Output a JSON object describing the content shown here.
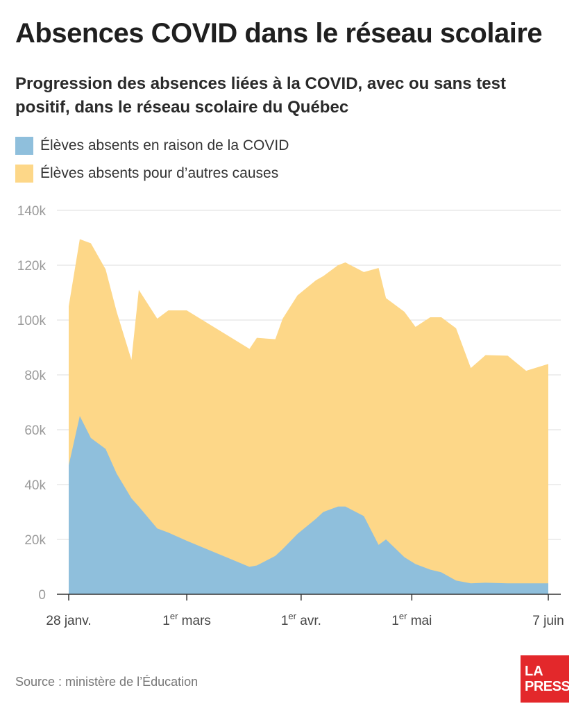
{
  "header": {
    "title": "Absences COVID dans le réseau scolaire",
    "subtitle": "Progression des absences liées à la COVID, avec ou sans test positif, dans le réseau scolaire du Québec"
  },
  "legend": {
    "items": [
      {
        "label": "Élèves absents en raison de la COVID",
        "color": "#8fbfdc"
      },
      {
        "label": "Élèves absents pour d’autres causes",
        "color": "#fdd788"
      }
    ]
  },
  "footer": {
    "source": "Source : ministère de l’Éducation",
    "logo_line1": "LA",
    "logo_line2": "PRESSE"
  },
  "chart_data": {
    "type": "area",
    "stacked": true,
    "x_unit": "date (2022)",
    "x": [
      "01-28",
      "01-31",
      "02-03",
      "02-07",
      "02-10",
      "02-14",
      "02-16",
      "02-21",
      "02-24",
      "03-01",
      "03-18",
      "03-20",
      "03-25",
      "03-27",
      "03-31",
      "04-05",
      "04-07",
      "04-11",
      "04-13",
      "04-18",
      "04-22",
      "04-24",
      "04-29",
      "05-02",
      "05-06",
      "05-09",
      "05-13",
      "05-17",
      "05-21",
      "05-27",
      "06-01",
      "06-07"
    ],
    "series": [
      {
        "name": "Élèves absents en raison de la COVID",
        "color": "#8fbfdc",
        "values": [
          47000,
          65000,
          57000,
          53000,
          44000,
          35000,
          32000,
          24000,
          22500,
          19500,
          10000,
          10500,
          14000,
          16500,
          22000,
          27500,
          30000,
          32000,
          32000,
          28500,
          18000,
          20000,
          13500,
          11000,
          9000,
          8000,
          5000,
          4000,
          4200,
          4000,
          4000,
          4000
        ]
      },
      {
        "name": "Élèves absents pour d’autres causes",
        "color": "#fdd788",
        "values": [
          58000,
          64500,
          71000,
          65500,
          59000,
          50500,
          79000,
          76500,
          81000,
          84000,
          79500,
          83000,
          79000,
          84000,
          87000,
          87000,
          86000,
          88000,
          89000,
          89000,
          101000,
          88000,
          89500,
          86500,
          92000,
          93000,
          92000,
          78500,
          83000,
          83000,
          77500,
          80000
        ]
      }
    ],
    "totals": [
      105000,
      129500,
      128000,
      118500,
      103000,
      85500,
      111000,
      100500,
      103500,
      103500,
      89500,
      93500,
      93000,
      100500,
      109000,
      114500,
      116000,
      120000,
      121000,
      117500,
      119000,
      108000,
      103000,
      97500,
      101000,
      101000,
      97000,
      82500,
      87200,
      87000,
      81500,
      84000
    ],
    "y_ticks": [
      "0",
      "20k",
      "40k",
      "60k",
      "80k",
      "100k",
      "120k",
      "140k"
    ],
    "ylim": [
      0,
      140000
    ],
    "x_tick_labels": [
      {
        "date": "01-28",
        "label": "28 janv.",
        "sup": ""
      },
      {
        "date": "03-01",
        "label": "1",
        "sup": "er",
        "rest": " mars"
      },
      {
        "date": "04-01",
        "label": "1",
        "sup": "er",
        "rest": " avr."
      },
      {
        "date": "05-01",
        "label": "1",
        "sup": "er",
        "rest": " mai"
      },
      {
        "date": "06-07",
        "label": "7 juin",
        "sup": ""
      }
    ],
    "grid": true
  }
}
